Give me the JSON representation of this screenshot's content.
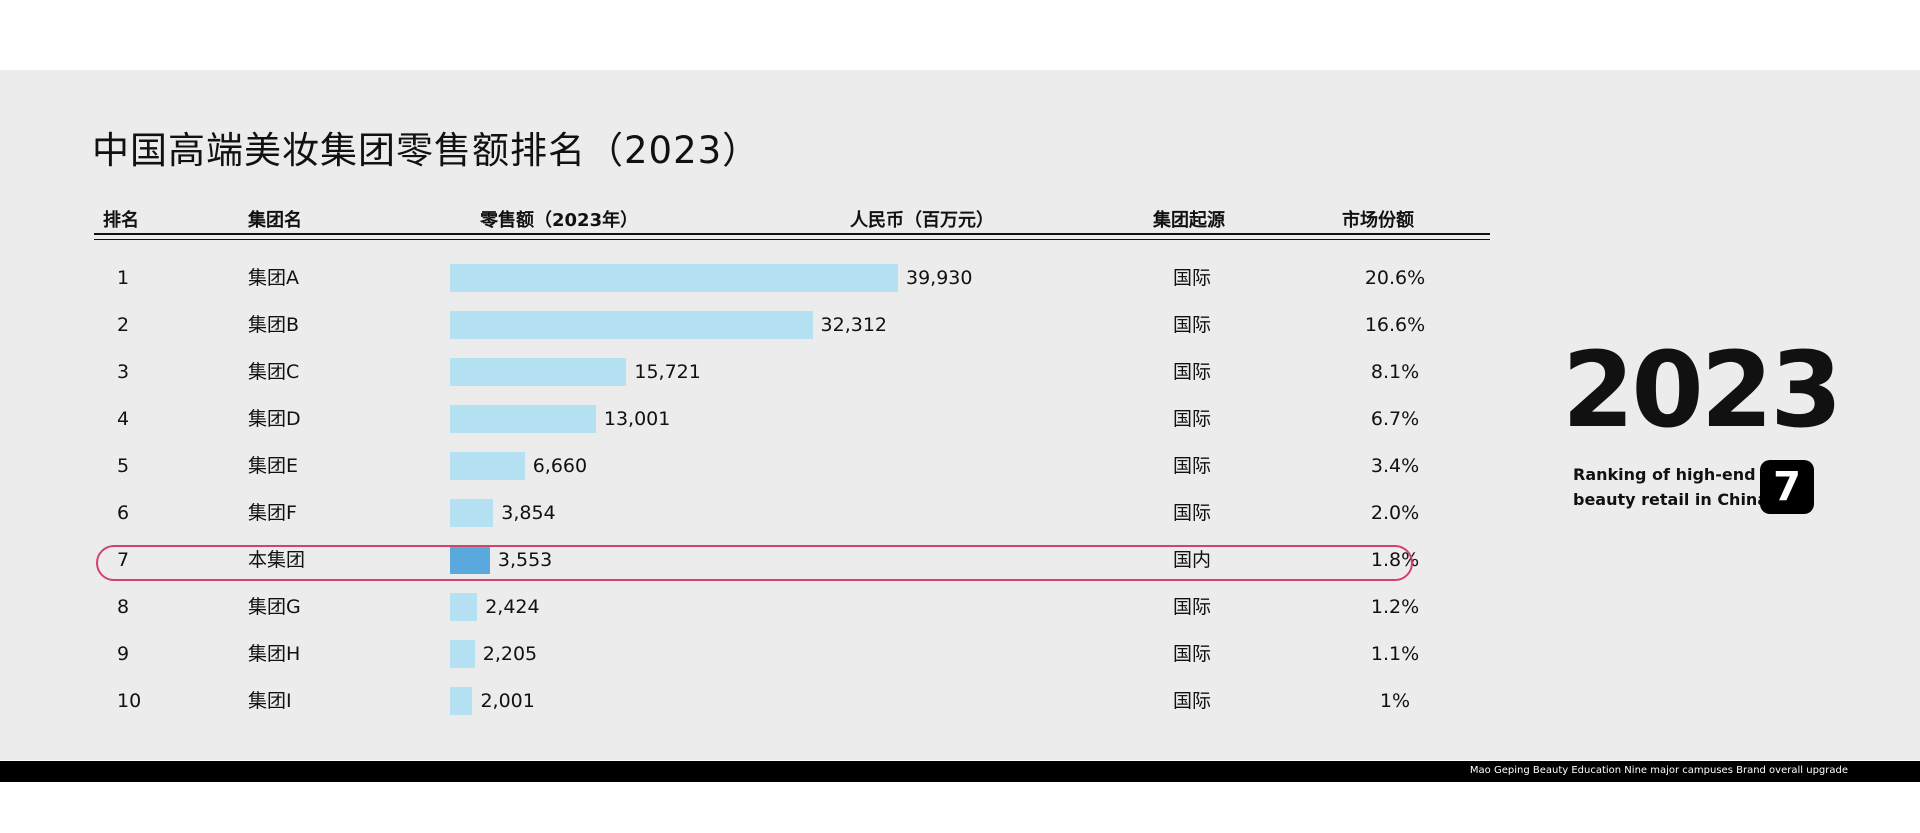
{
  "title": "中国高端美妆集团零售额排名（2023）",
  "headers": {
    "rank": "排名",
    "group": "集团名",
    "sales": "零售额（2023年）",
    "currency": "人民币（百万元）",
    "origin": "集团起源",
    "share": "市场份额"
  },
  "colors": {
    "bar": "#b5e2f3",
    "highlight_bar": "#5aa9dc",
    "highlight_ring": "#d6406c"
  },
  "chart_data": {
    "type": "bar",
    "orientation": "horizontal",
    "categories": [
      "集团A",
      "集团B",
      "集团C",
      "集团D",
      "集团E",
      "集团F",
      "本集团",
      "集团G",
      "集团H",
      "集团I"
    ],
    "values": [
      39930,
      32312,
      15721,
      13001,
      6660,
      3854,
      3553,
      2424,
      2205,
      2001
    ],
    "value_labels": [
      "39,930",
      "32,312",
      "15,721",
      "13,001",
      "6,660",
      "3,854",
      "3,553",
      "2,424",
      "2,205",
      "2,001"
    ],
    "highlighted_category": "本集团",
    "xlim": [
      0,
      39930
    ]
  },
  "rows": [
    {
      "rank": "1",
      "name": "集团A",
      "origin": "国际",
      "share": "20.6%"
    },
    {
      "rank": "2",
      "name": "集团B",
      "origin": "国际",
      "share": "16.6%"
    },
    {
      "rank": "3",
      "name": "集团C",
      "origin": "国际",
      "share": "8.1%"
    },
    {
      "rank": "4",
      "name": "集团D",
      "origin": "国际",
      "share": "6.7%"
    },
    {
      "rank": "5",
      "name": "集团E",
      "origin": "国际",
      "share": "3.4%"
    },
    {
      "rank": "6",
      "name": "集团F",
      "origin": "国际",
      "share": "2.0%"
    },
    {
      "rank": "7",
      "name": "本集团",
      "origin": "国内",
      "share": "1.8%"
    },
    {
      "rank": "8",
      "name": "集团G",
      "origin": "国际",
      "share": "1.2%"
    },
    {
      "rank": "9",
      "name": "集团H",
      "origin": "国际",
      "share": "1.1%"
    },
    {
      "rank": "10",
      "name": "集团I",
      "origin": "国际",
      "share": "1%"
    }
  ],
  "side": {
    "year": "2023",
    "line1": "Ranking of high-end",
    "line2": "beauty retail in China",
    "rank_badge": "7"
  },
  "footer": "Mao Geping Beauty Education Nine major campuses Brand overall upgrade"
}
